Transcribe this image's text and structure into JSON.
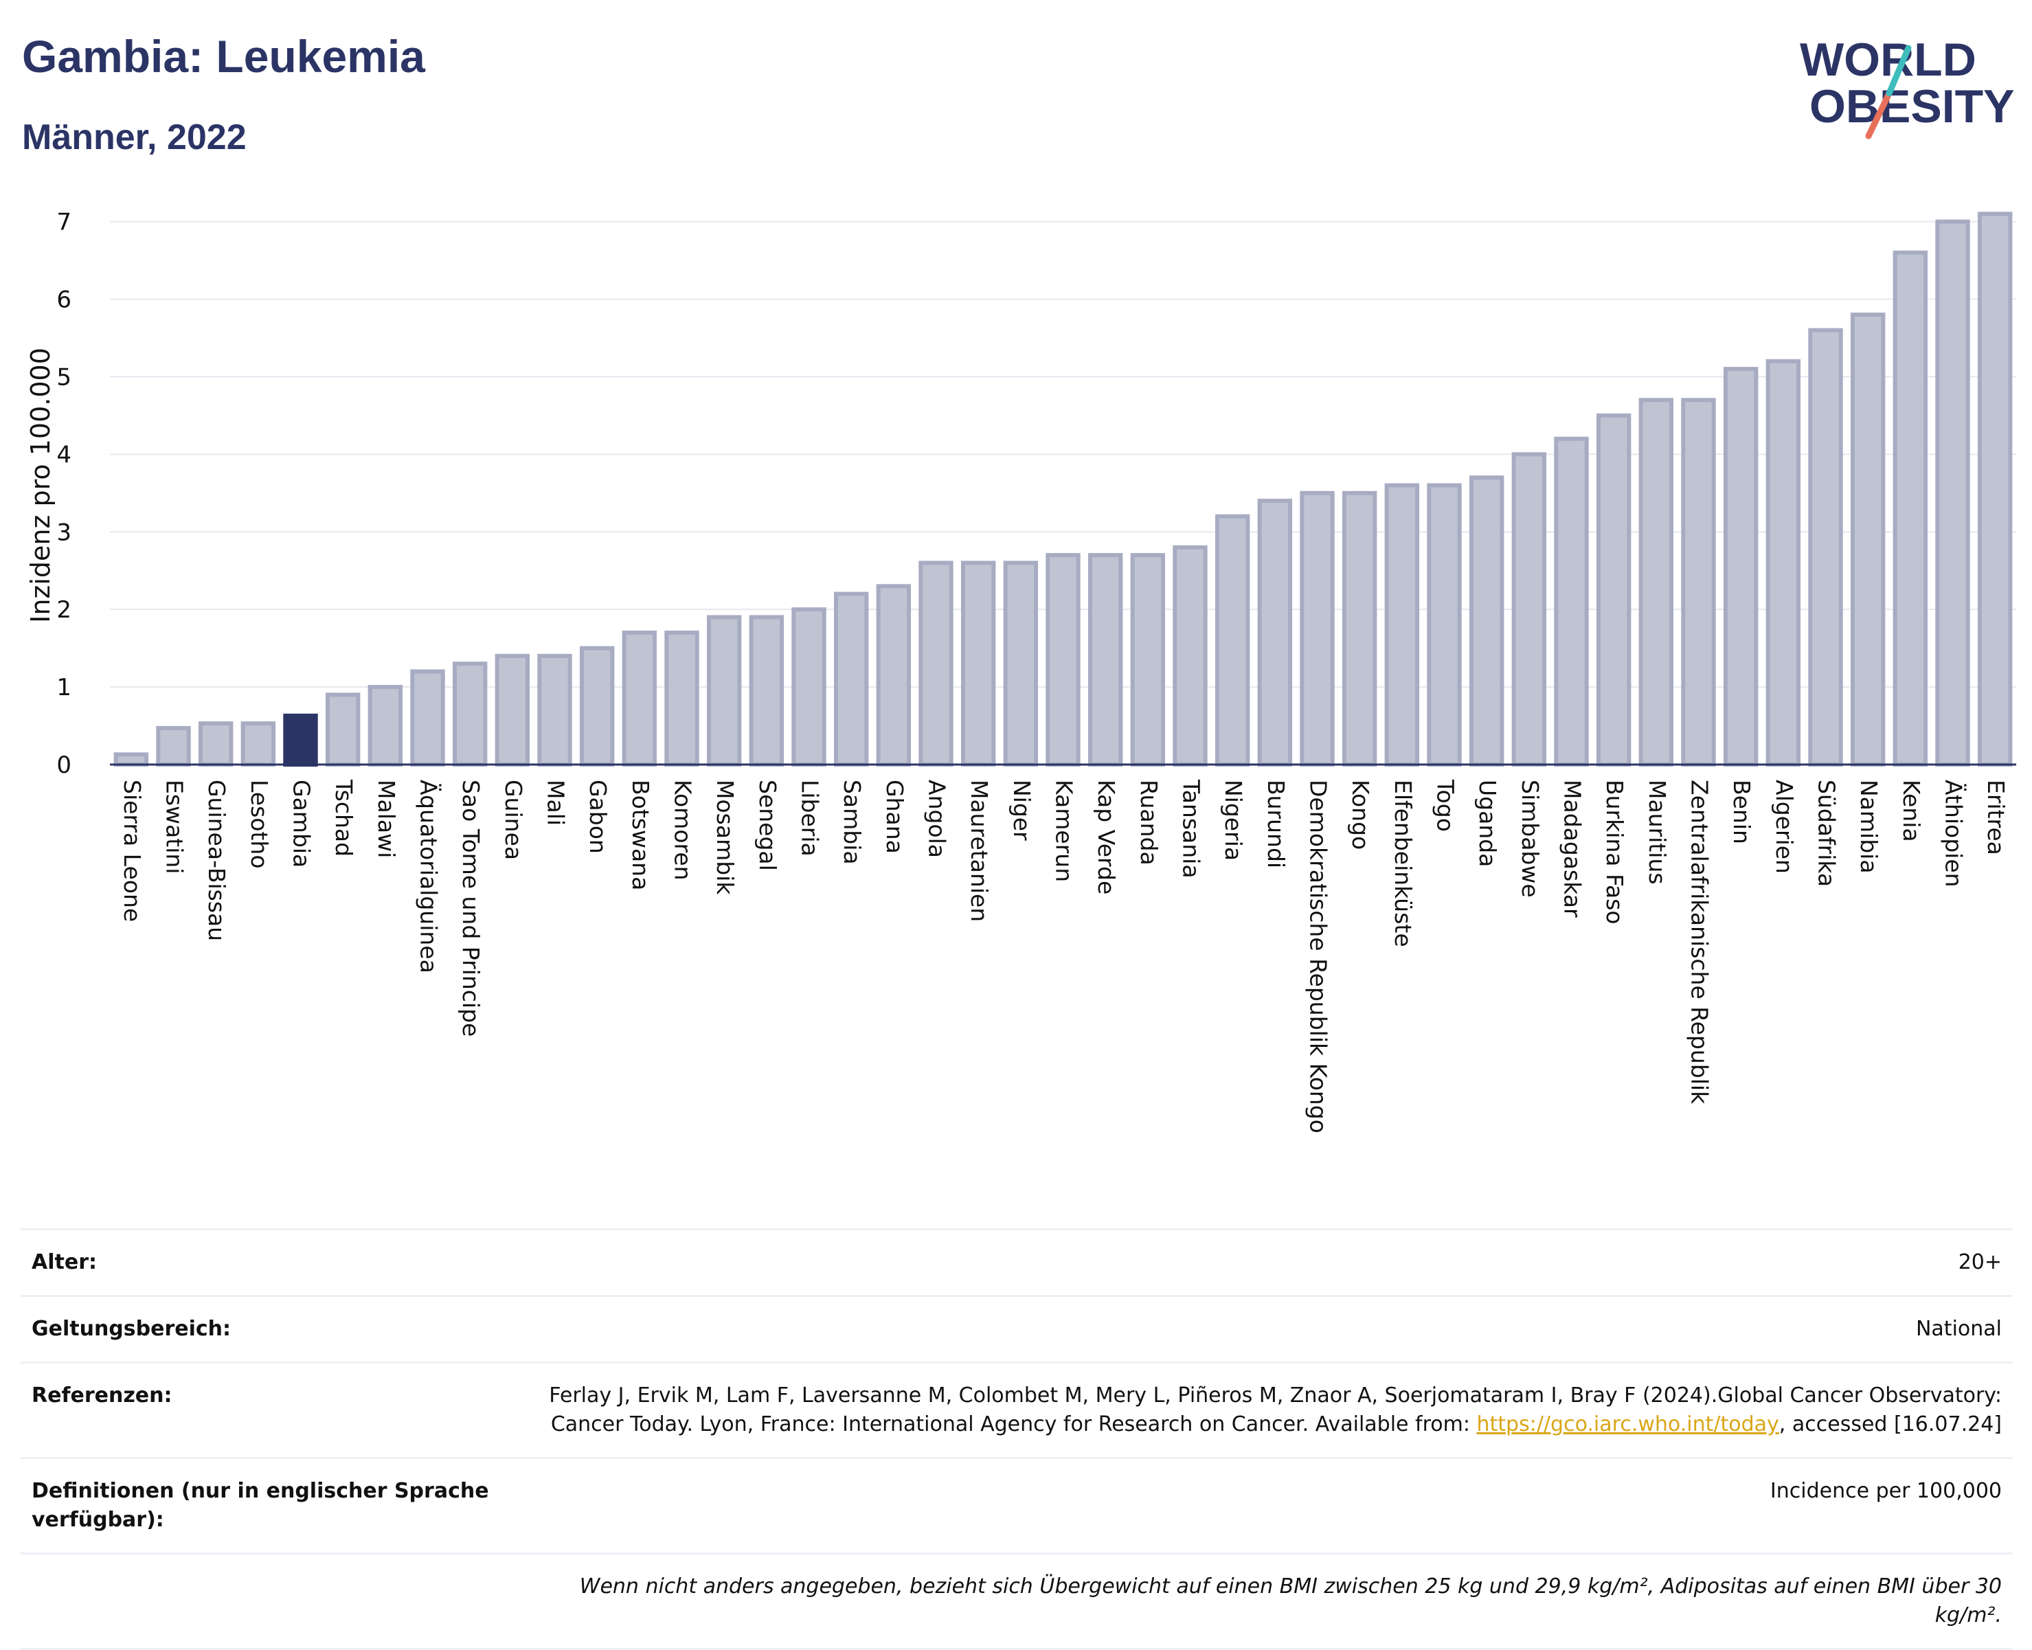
{
  "header": {
    "title": "Gambia: Leukemia",
    "subtitle": "Männer, 2022"
  },
  "logo": {
    "line1": "WORLD",
    "line2": "OBESITY"
  },
  "colors": {
    "bar": "#c0c4d2",
    "bar_stroke": "#a7acc2",
    "highlight": "#2b3465",
    "text": "#2b3465"
  },
  "chart_data": {
    "type": "bar",
    "ylabel": "Inzidenz pro 100.000",
    "ylim": [
      0,
      7.2
    ],
    "yticks": [
      0,
      1,
      2,
      3,
      4,
      5,
      6,
      7
    ],
    "grid": true,
    "highlight": "Gambia",
    "categories": [
      "Sierra Leone",
      "Eswatini",
      "Guinea-Bissau",
      "Lesotho",
      "Gambia",
      "Tschad",
      "Malawi",
      "Äquatorialguinea",
      "Sao Tome und Principe",
      "Guinea",
      "Mali",
      "Gabon",
      "Botswana",
      "Komoren",
      "Mosambik",
      "Senegal",
      "Liberia",
      "Sambia",
      "Ghana",
      "Angola",
      "Mauretanien",
      "Niger",
      "Kamerun",
      "Kap Verde",
      "Ruanda",
      "Tansania",
      "Nigeria",
      "Burundi",
      "Demokratische Republik Kongo",
      "Kongo",
      "Elfenbeinküste",
      "Togo",
      "Uganda",
      "Simbabwe",
      "Madagaskar",
      "Burkina Faso",
      "Mauritius",
      "Zentralafrikanische Republik",
      "Benin",
      "Algerien",
      "Südafrika",
      "Namibia",
      "Kenia",
      "Äthiopien",
      "Eritrea"
    ],
    "values": [
      0.13,
      0.47,
      0.53,
      0.53,
      0.63,
      0.9,
      1.0,
      1.2,
      1.3,
      1.4,
      1.4,
      1.5,
      1.7,
      1.7,
      1.9,
      1.9,
      2.0,
      2.2,
      2.3,
      2.6,
      2.6,
      2.6,
      2.7,
      2.7,
      2.7,
      2.8,
      3.2,
      3.4,
      3.5,
      3.5,
      3.6,
      3.6,
      3.7,
      4.0,
      4.2,
      4.5,
      4.7,
      4.7,
      5.1,
      5.2,
      5.6,
      5.8,
      6.6,
      7.0,
      7.1
    ]
  },
  "info": {
    "age_label": "Alter:",
    "age_value": "20+",
    "scope_label": "Geltungsbereich:",
    "scope_value": "National",
    "ref_label": "Referenzen:",
    "ref_text_1": "Ferlay J, Ervik M, Lam F, Laversanne M, Colombet M, Mery L, Piñeros M, Znaor A, Soerjomataram I, Bray F (2024).Global Cancer Observatory: Cancer Today. Lyon, France: International Agency for Research on Cancer. Available from: ",
    "ref_link": "https://gco.iarc.who.int/today",
    "ref_text_2": ", accessed [16.07.24]",
    "def_label": "Definitionen (nur in englischer Sprache verfügbar):",
    "def_value": "Incidence per 100,000",
    "note": "Wenn nicht anders angegeben, bezieht sich Übergewicht auf einen BMI zwischen 25 kg und 29,9 kg/m², Adipositas auf einen BMI über 30 kg/m²."
  }
}
